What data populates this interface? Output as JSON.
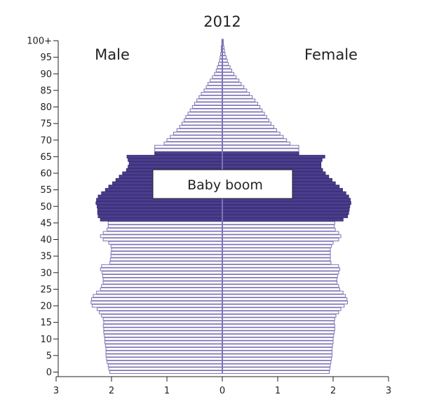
{
  "chart_data": {
    "type": "population-pyramid",
    "title": "2012",
    "left_label": "Male",
    "right_label": "Female",
    "annotation": "Baby boom",
    "highlight_ages": [
      46,
      66
    ],
    "age_ticks": [
      {
        "age": 0,
        "label": "0"
      },
      {
        "age": 5,
        "label": "5"
      },
      {
        "age": 10,
        "label": "10"
      },
      {
        "age": 15,
        "label": "15"
      },
      {
        "age": 20,
        "label": "20"
      },
      {
        "age": 25,
        "label": "25"
      },
      {
        "age": 30,
        "label": "30"
      },
      {
        "age": 35,
        "label": "35"
      },
      {
        "age": 40,
        "label": "40"
      },
      {
        "age": 45,
        "label": "45"
      },
      {
        "age": 50,
        "label": "50"
      },
      {
        "age": 55,
        "label": "55"
      },
      {
        "age": 60,
        "label": "60"
      },
      {
        "age": 65,
        "label": "65"
      },
      {
        "age": 70,
        "label": "70"
      },
      {
        "age": 75,
        "label": "75"
      },
      {
        "age": 80,
        "label": "80"
      },
      {
        "age": 85,
        "label": "85"
      },
      {
        "age": 90,
        "label": "90"
      },
      {
        "age": 95,
        "label": "95"
      },
      {
        "age": 100,
        "label": "100+"
      }
    ],
    "x_ticks": [
      {
        "value": -3,
        "label": "3"
      },
      {
        "value": -2,
        "label": "2"
      },
      {
        "value": -1,
        "label": "1"
      },
      {
        "value": 0,
        "label": "0"
      },
      {
        "value": 1,
        "label": "1"
      },
      {
        "value": 2,
        "label": "2"
      },
      {
        "value": 3,
        "label": "3"
      }
    ],
    "xlim": [
      -3,
      3
    ],
    "ylim": [
      0,
      100
    ],
    "ages": [
      0,
      1,
      2,
      3,
      4,
      5,
      6,
      7,
      8,
      9,
      10,
      11,
      12,
      13,
      14,
      15,
      16,
      17,
      18,
      19,
      20,
      21,
      22,
      23,
      24,
      25,
      26,
      27,
      28,
      29,
      30,
      31,
      32,
      33,
      34,
      35,
      36,
      37,
      38,
      39,
      40,
      41,
      42,
      43,
      44,
      45,
      46,
      47,
      48,
      49,
      50,
      51,
      52,
      53,
      54,
      55,
      56,
      57,
      58,
      59,
      60,
      61,
      62,
      63,
      64,
      65,
      66,
      67,
      68,
      69,
      70,
      71,
      72,
      73,
      74,
      75,
      76,
      77,
      78,
      79,
      80,
      81,
      82,
      83,
      84,
      85,
      86,
      87,
      88,
      89,
      90,
      91,
      92,
      93,
      94,
      95,
      96,
      97,
      98,
      99,
      100
    ],
    "male": [
      2.03,
      2.05,
      2.06,
      2.08,
      2.09,
      2.1,
      2.1,
      2.1,
      2.11,
      2.12,
      2.12,
      2.13,
      2.14,
      2.14,
      2.15,
      2.14,
      2.15,
      2.18,
      2.22,
      2.26,
      2.35,
      2.37,
      2.36,
      2.33,
      2.27,
      2.2,
      2.18,
      2.15,
      2.15,
      2.16,
      2.17,
      2.2,
      2.18,
      2.03,
      2.02,
      2.01,
      2.01,
      2.0,
      2.01,
      2.05,
      2.15,
      2.2,
      2.15,
      2.08,
      2.06,
      2.06,
      2.2,
      2.24,
      2.25,
      2.25,
      2.26,
      2.28,
      2.27,
      2.24,
      2.18,
      2.11,
      2.05,
      1.98,
      1.92,
      1.86,
      1.8,
      1.73,
      1.7,
      1.68,
      1.7,
      1.72,
      1.22,
      1.22,
      1.22,
      1.05,
      1.0,
      0.94,
      0.88,
      0.82,
      0.77,
      0.73,
      0.69,
      0.66,
      0.62,
      0.58,
      0.54,
      0.5,
      0.46,
      0.42,
      0.38,
      0.33,
      0.29,
      0.26,
      0.22,
      0.18,
      0.14,
      0.11,
      0.09,
      0.07,
      0.05,
      0.04,
      0.03,
      0.02,
      0.02,
      0.01,
      0.01
    ],
    "female": [
      1.93,
      1.94,
      1.95,
      1.96,
      1.97,
      1.98,
      1.98,
      1.98,
      1.99,
      2.0,
      2.0,
      2.01,
      2.02,
      2.03,
      2.03,
      2.02,
      2.03,
      2.05,
      2.1,
      2.14,
      2.2,
      2.26,
      2.25,
      2.22,
      2.18,
      2.12,
      2.1,
      2.07,
      2.07,
      2.08,
      2.1,
      2.12,
      2.1,
      1.96,
      1.95,
      1.95,
      1.95,
      1.95,
      1.97,
      2.0,
      2.1,
      2.14,
      2.1,
      2.04,
      2.02,
      2.03,
      2.18,
      2.26,
      2.28,
      2.29,
      2.3,
      2.32,
      2.31,
      2.28,
      2.23,
      2.17,
      2.11,
      2.04,
      1.98,
      1.92,
      1.86,
      1.81,
      1.78,
      1.78,
      1.8,
      1.85,
      1.38,
      1.38,
      1.38,
      1.22,
      1.16,
      1.1,
      1.04,
      0.98,
      0.93,
      0.88,
      0.84,
      0.8,
      0.76,
      0.72,
      0.68,
      0.64,
      0.59,
      0.54,
      0.49,
      0.44,
      0.39,
      0.34,
      0.3,
      0.25,
      0.21,
      0.17,
      0.14,
      0.11,
      0.09,
      0.07,
      0.05,
      0.04,
      0.03,
      0.02,
      0.02
    ],
    "colors": {
      "bar_fill": "#ffffff",
      "bar_stroke": "#7f73b5",
      "highlight_fill": "#4b3e8e",
      "highlight_stroke": "#3a2f77",
      "axis": "#222222",
      "center_line": "#7f73b5"
    }
  }
}
